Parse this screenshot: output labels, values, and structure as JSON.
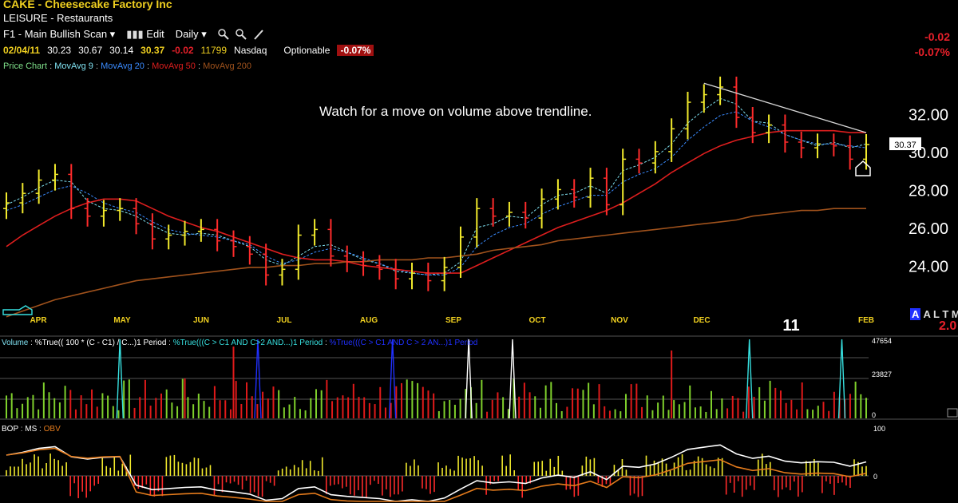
{
  "header": {
    "ticker_line": "CAKE - Cheesecake Factory Inc",
    "industry": "LEISURE - Restaurants",
    "scan": "F1 - Main Bullish Scan ▾",
    "edit": "Edit",
    "period": "Daily ▾",
    "quote": {
      "date": "02/04/11",
      "open": "30.23",
      "high": "30.67",
      "low": "30.14",
      "close": "30.37",
      "change": "-0.02",
      "volume": "11799",
      "exchange": "Nasdaq",
      "optionable": "Optionable",
      "change_pct": "-0.07%"
    },
    "right_change": "-0.02",
    "right_change_pct": "-0.07%"
  },
  "legend": {
    "price_chart": "Price Chart",
    "ma9": "MovAvg 9",
    "ma20": "MovAvg 20",
    "ma50": "MovAvg 50",
    "ma200": "MovAvg 200"
  },
  "annotation": "Watch for a move on volume above trendline.",
  "price_tag": "30.37",
  "year_marker": "11",
  "alert_label": "A L T M L",
  "alert_value": "2.0",
  "volume_legend": {
    "volume": "Volume",
    "ind1": "%True(( 100 * (C - C1) / C...)1 Period",
    "ind2": "%True(((C > C1 AND C>2 AND...)1 Period",
    "ind3": "%True(((C > C1 AND C > 2 AN...)1 Period"
  },
  "bop_legend": {
    "bop": "BOP",
    "ms": "MS",
    "obv": "OBV"
  },
  "colors": {
    "up_bar": "#f2ea2c",
    "down_bar": "#ff2b2b",
    "ma9": "#7fe0f0",
    "ma20": "#3a8bff",
    "ma50": "#dd1e1e",
    "ma200": "#a0521c",
    "trendline": "#d8d8d8",
    "vol_up": "#7fd02c",
    "vol_down": "#e01a1a",
    "spike_cyan": "#37e0e0",
    "spike_blue": "#2030ff",
    "spike_white": "#ffffff",
    "obv_line": "#e47b1c",
    "ms_line": "#ffffff"
  },
  "chart_data": [
    {
      "type": "line",
      "title": "CAKE - Cheesecake Factory Inc",
      "series": [
        {
          "name": "MovAvg 9",
          "values": [
            27.2,
            27.6,
            28.1,
            28.5,
            28.4,
            27.4,
            27.0,
            26.9,
            26.6,
            26.1,
            25.7,
            25.6,
            25.7,
            25.6,
            25.3,
            25.0,
            24.3,
            24.0,
            24.5,
            25.0,
            25.1,
            24.7,
            24.3,
            24.1,
            23.7,
            23.6,
            23.5,
            23.6,
            24.2,
            26.0,
            26.2,
            26.6,
            26.5,
            27.2,
            27.7,
            27.8,
            28.2,
            27.8,
            29.0,
            29.3,
            29.7,
            30.4,
            31.5,
            32.2,
            32.8,
            32.5,
            31.6,
            31.5,
            30.9,
            30.6,
            30.3,
            30.5,
            30.2,
            30.4
          ]
        },
        {
          "name": "MovAvg 20",
          "values": [
            26.9,
            27.2,
            27.6,
            28.0,
            28.2,
            27.8,
            27.3,
            27.0,
            26.8,
            26.3,
            25.9,
            25.7,
            25.6,
            25.5,
            25.3,
            25.1,
            24.5,
            24.1,
            24.3,
            24.7,
            24.9,
            24.7,
            24.4,
            24.1,
            23.8,
            23.6,
            23.5,
            23.5,
            23.9,
            25.0,
            25.6,
            26.0,
            26.2,
            26.7,
            27.1,
            27.4,
            27.7,
            27.7,
            28.4,
            28.8,
            29.1,
            29.7,
            30.6,
            31.3,
            31.9,
            32.1,
            31.6,
            31.3,
            30.9,
            30.6,
            30.4,
            30.4,
            30.3,
            30.2
          ]
        },
        {
          "name": "MovAvg 50",
          "values": [
            25.0,
            25.6,
            26.1,
            26.6,
            27.0,
            27.3,
            27.5,
            27.5,
            27.4,
            27.0,
            26.6,
            26.3,
            26.0,
            25.8,
            25.5,
            25.2,
            24.9,
            24.6,
            24.4,
            24.3,
            24.3,
            24.2,
            24.0,
            23.9,
            23.8,
            23.7,
            23.6,
            23.6,
            23.6,
            24.0,
            24.4,
            24.8,
            25.2,
            25.6,
            26.0,
            26.3,
            26.6,
            26.9,
            27.3,
            27.8,
            28.3,
            28.9,
            29.4,
            29.9,
            30.3,
            30.6,
            30.8,
            31.0,
            31.1,
            31.1,
            31.1,
            31.1,
            31.0,
            31.0
          ]
        },
        {
          "name": "MovAvg 200",
          "values": [
            21.3,
            21.6,
            21.9,
            22.2,
            22.4,
            22.6,
            22.8,
            23.0,
            23.2,
            23.3,
            23.4,
            23.5,
            23.6,
            23.7,
            23.8,
            23.9,
            23.9,
            24.0,
            24.0,
            24.1,
            24.1,
            24.2,
            24.2,
            24.3,
            24.3,
            24.3,
            24.4,
            24.4,
            24.5,
            24.6,
            24.8,
            24.9,
            25.0,
            25.1,
            25.3,
            25.4,
            25.5,
            25.6,
            25.7,
            25.8,
            25.9,
            26.0,
            26.1,
            26.2,
            26.3,
            26.4,
            26.6,
            26.7,
            26.8,
            26.9,
            26.9,
            27.0,
            27.0,
            27.0
          ]
        }
      ],
      "price_bars": {
        "close": [
          27.3,
          27.8,
          28.5,
          28.8,
          27.0,
          26.6,
          26.9,
          27.0,
          26.2,
          25.4,
          25.6,
          25.8,
          25.9,
          25.3,
          25.0,
          24.6,
          23.5,
          23.8,
          25.6,
          25.9,
          24.5,
          24.2,
          24.0,
          23.8,
          23.3,
          23.6,
          23.2,
          23.9,
          25.5,
          27.0,
          26.6,
          26.8,
          26.5,
          27.5,
          28.0,
          27.6,
          28.6,
          27.2,
          29.6,
          29.4,
          30.0,
          31.2,
          32.6,
          33.0,
          33.4,
          31.8,
          31.0,
          31.4,
          30.5,
          30.2,
          30.4,
          30.3,
          29.6,
          30.37
        ],
        "up": [
          true,
          true,
          true,
          true,
          false,
          false,
          true,
          true,
          false,
          false,
          true,
          true,
          true,
          false,
          false,
          false,
          false,
          true,
          true,
          true,
          false,
          false,
          false,
          false,
          false,
          true,
          false,
          true,
          true,
          true,
          false,
          true,
          false,
          true,
          true,
          false,
          true,
          false,
          true,
          false,
          true,
          true,
          true,
          true,
          true,
          false,
          false,
          true,
          false,
          false,
          true,
          false,
          false,
          true
        ]
      },
      "x_labels": [
        "APR",
        "MAY",
        "JUN",
        "JUL",
        "AUG",
        "SEP",
        "OCT",
        "NOV",
        "DEC",
        "11",
        "FEB"
      ],
      "y_ticks": [
        "32.00",
        "30.00",
        "28.00",
        "26.00",
        "24.00"
      ],
      "y_range": [
        21.5,
        34.2
      ],
      "annotation": "Watch for a move on volume above trendline.",
      "trendline": [
        {
          "x": 43,
          "y": 33.6
        },
        {
          "x": 53,
          "y": 31.0
        }
      ]
    },
    {
      "type": "bar",
      "title": "Volume",
      "y_ticks": [
        "47654",
        "23827",
        "0"
      ],
      "y_range": [
        0,
        47654
      ],
      "spikes": [
        {
          "x": 7,
          "color": "cyan"
        },
        {
          "x": 15.5,
          "color": "blue"
        },
        {
          "x": 23.8,
          "color": "blue"
        },
        {
          "x": 28.5,
          "color": "white"
        },
        {
          "x": 31.2,
          "color": "white"
        },
        {
          "x": 45.8,
          "color": "cyan"
        },
        {
          "x": 51.5,
          "color": "cyan"
        }
      ]
    },
    {
      "type": "line",
      "title": "BOP · MS · OBV",
      "y_ticks": [
        "100",
        "0"
      ]
    }
  ]
}
